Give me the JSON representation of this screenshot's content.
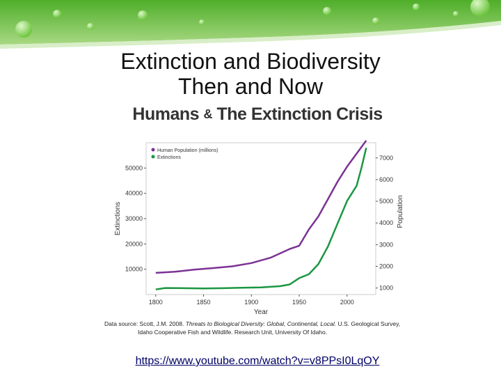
{
  "slide": {
    "title_line1": "Extinction and Biodiversity",
    "title_line2": "Then and Now",
    "link": "https://www.youtube.com/watch?v=v8PPsI0LqOY"
  },
  "chart_heading": {
    "part1": "Humans",
    "amp": "&",
    "part2": "The Extinction Crisis"
  },
  "source": {
    "prefix": "Data source: Scott, J.M. 2008.",
    "title": "Threats to Biological Diversity: Global, Continental, Local.",
    "suffix": "U.S. Geological Survey,",
    "line2": "Idaho Cooperative Fish and Wildlife. Research Unit, University Of Idaho."
  },
  "chart_data": {
    "type": "line",
    "xlabel": "Year",
    "ylabel_left": "Extinctions",
    "ylabel_right": "Population",
    "xlim": [
      1790,
      2030
    ],
    "ylim_left": [
      0,
      60000
    ],
    "ylim_right": [
      700,
      7700
    ],
    "x_ticks": [
      "1800",
      "1850",
      "1900",
      "1950",
      "2000"
    ],
    "y_left_ticks": [
      "10000",
      "20000",
      "30000",
      "40000",
      "50000"
    ],
    "y_right_ticks": [
      "1000",
      "2000",
      "3000",
      "4000",
      "5000",
      "6000",
      "7000"
    ],
    "legend_position": "top-left",
    "series": [
      {
        "name": "Human Population (millions)",
        "axis": "right",
        "color": "#7b3294",
        "x": [
          1800,
          1820,
          1840,
          1860,
          1880,
          1900,
          1920,
          1940,
          1950,
          1960,
          1970,
          1980,
          1990,
          2000,
          2010,
          2020
        ],
        "values": [
          1700,
          1750,
          1850,
          1920,
          2000,
          2150,
          2400,
          2800,
          2950,
          3700,
          4300,
          5100,
          5900,
          6600,
          7200,
          7800
        ]
      },
      {
        "name": "Extinctions",
        "axis": "left",
        "color": "#1a9641",
        "x": [
          1800,
          1810,
          1830,
          1850,
          1870,
          1890,
          1910,
          1930,
          1940,
          1950,
          1960,
          1970,
          1980,
          1990,
          2000,
          2010,
          2015,
          2020
        ],
        "values": [
          2000,
          2600,
          2500,
          2400,
          2500,
          2700,
          2800,
          3300,
          4000,
          6500,
          8000,
          12000,
          19000,
          28000,
          37000,
          43000,
          50000,
          58000
        ]
      }
    ]
  }
}
